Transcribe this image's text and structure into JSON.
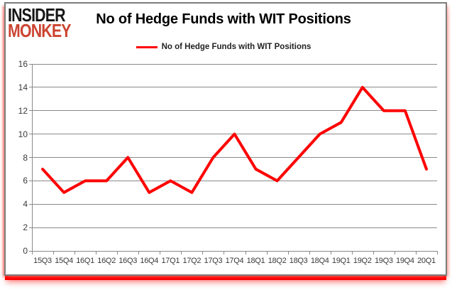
{
  "logo": {
    "line1": "INSIDER",
    "line2": "MONKEY"
  },
  "header": {
    "title": "No of Hedge Funds with WIT Positions"
  },
  "legend": {
    "label": "No of Hedge Funds with WIT Positions"
  },
  "colors": {
    "series_red": "#fe0000",
    "logo_black": "#161616",
    "logo_red": "#cb4431",
    "grid_gray": "#8a8a8a",
    "axis_text": "#3a3a3a",
    "card_border": "#7c7c7c",
    "shadow_red": "#fb0000"
  },
  "chart_data": {
    "type": "line",
    "title": "No of Hedge Funds with WIT Positions",
    "categories": [
      "15Q3",
      "15Q4",
      "16Q1",
      "16Q2",
      "16Q3",
      "16Q4",
      "17Q1",
      "17Q2",
      "17Q3",
      "17Q4",
      "18Q1",
      "18Q2",
      "18Q3",
      "18Q4",
      "19Q1",
      "19Q2",
      "19Q3",
      "19Q4",
      "20Q1"
    ],
    "series": [
      {
        "name": "No of Hedge Funds with WIT Positions",
        "color": "#fe0000",
        "values": [
          7,
          5,
          6,
          6,
          8,
          5,
          6,
          5,
          8,
          10,
          7,
          6,
          8,
          10,
          11,
          14,
          12,
          12,
          7
        ]
      }
    ],
    "xlabel": "",
    "ylabel": "",
    "ylim": [
      0,
      16
    ],
    "yticks": [
      0,
      2,
      4,
      6,
      8,
      10,
      12,
      14,
      16
    ],
    "grid": true,
    "legend_position": "top-center"
  }
}
